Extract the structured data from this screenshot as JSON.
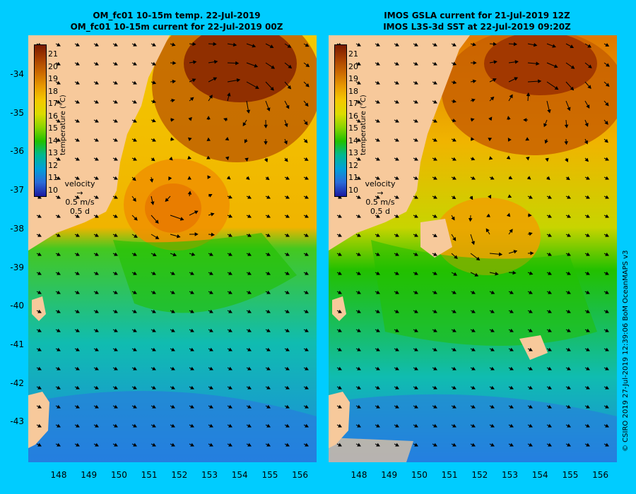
{
  "left_panel": {
    "title_line1": "OM_fc01 10-15m temp. 22-Jul-2019",
    "title_line2": "OM_fc01 10-15m current for 22-Jul-2019 00Z"
  },
  "right_panel": {
    "title_line1": "IMOS GSLA current for 21-Jul-2019 12Z",
    "title_line2": "IMOS L3S-3d SST at 22-Jul-2019 09:20Z"
  },
  "x_axis_ticks": [
    "148",
    "149",
    "150",
    "151",
    "152",
    "153",
    "154",
    "155",
    "156"
  ],
  "y_axis_ticks": [
    "-34",
    "-35",
    "-36",
    "-37",
    "-38",
    "-39",
    "-40",
    "-41",
    "-42",
    "-43"
  ],
  "colorbar": {
    "ticks": [
      "21",
      "20",
      "19",
      "18",
      "17",
      "16",
      "15",
      "14",
      "13",
      "12",
      "11",
      "10"
    ],
    "unit_label": "temperature (°C)",
    "colors": [
      "#7a1a00",
      "#a84000",
      "#cc6a00",
      "#e89a00",
      "#f4c800",
      "#dcdc00",
      "#8ad400",
      "#22c000",
      "#00b890",
      "#00a0d8",
      "#2a6ad8",
      "#1a1aa0"
    ]
  },
  "velocity_legend": {
    "title": "velocity",
    "speed": "0.5 m/s",
    "duration": "0.5 d"
  },
  "credit": "© CSIRO 2019   27-Jul-2019 12:39:06 BoM OceanMAPS v3",
  "colors": {
    "background": "#00ccff",
    "land": "#f7c99b"
  }
}
